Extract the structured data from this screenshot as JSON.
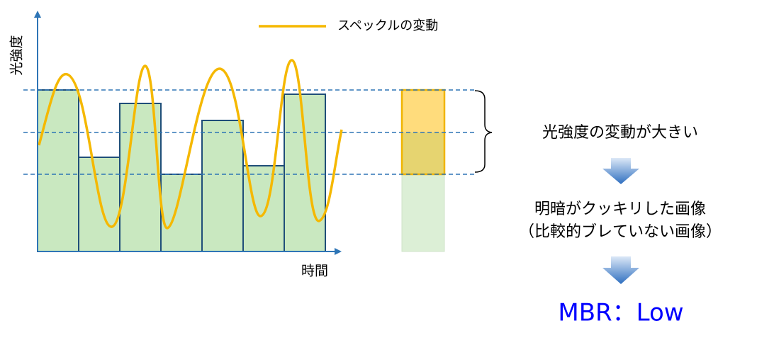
{
  "legend": "スペックルの変動",
  "y_axis_label": "光強度",
  "x_axis_label": "時間",
  "annotation": "光強度の変動が大きい",
  "result": [
    "明暗がクッキリした画像",
    "（比較的ブレていない画像）"
  ],
  "mbr": "MBR：Low"
}
